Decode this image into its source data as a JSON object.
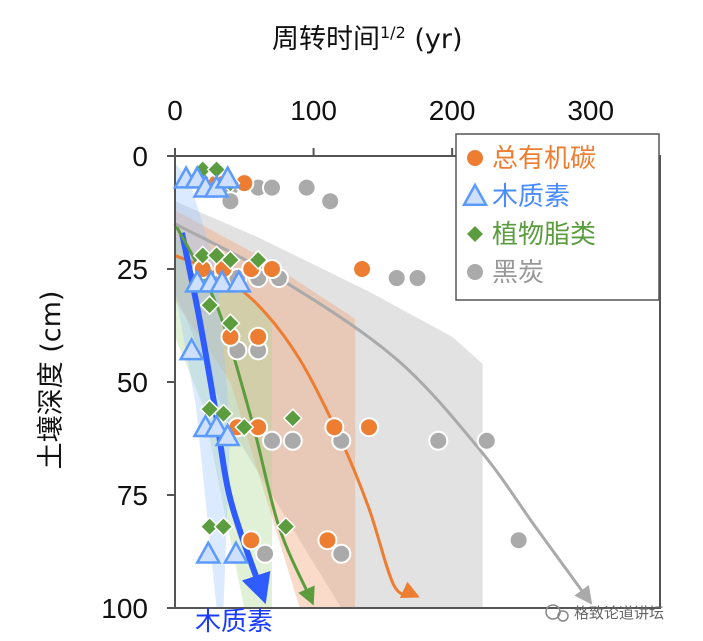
{
  "chart_data": {
    "type": "scatter",
    "title": "周转时间",
    "title_sup": "1/2",
    "title_unit": " (yr)",
    "ylabel": "土壤深度 (cm)",
    "xlim": [
      0,
      350
    ],
    "ylim": [
      100,
      0
    ],
    "xticks": [
      0,
      100,
      200,
      300
    ],
    "yticks": [
      0,
      25,
      50,
      75,
      100
    ],
    "legend_position": "top-right",
    "series": [
      {
        "name": "总有机碳",
        "marker": "circle",
        "color": "#ed7d31",
        "points": [
          [
            20,
            6
          ],
          [
            30,
            6
          ],
          [
            50,
            6
          ],
          [
            20,
            25
          ],
          [
            35,
            25
          ],
          [
            55,
            25
          ],
          [
            70,
            25
          ],
          [
            135,
            25
          ],
          [
            40,
            40
          ],
          [
            60,
            40
          ],
          [
            45,
            60
          ],
          [
            60,
            60
          ],
          [
            115,
            60
          ],
          [
            140,
            60
          ],
          [
            55,
            85
          ],
          [
            110,
            85
          ]
        ],
        "trend": [
          [
            0,
            22
          ],
          [
            30,
            26
          ],
          [
            60,
            33
          ],
          [
            90,
            45
          ],
          [
            120,
            63
          ],
          [
            140,
            78
          ],
          [
            158,
            95
          ]
        ],
        "trend_end": [
          172,
          97
        ]
      },
      {
        "name": "木质素",
        "marker": "triangle",
        "color": "#5b9bff",
        "points": [
          [
            8,
            5
          ],
          [
            16,
            5
          ],
          [
            22,
            7
          ],
          [
            30,
            7
          ],
          [
            38,
            5
          ],
          [
            16,
            28
          ],
          [
            26,
            28
          ],
          [
            34,
            28
          ],
          [
            46,
            28
          ],
          [
            12,
            43
          ],
          [
            22,
            60
          ],
          [
            30,
            60
          ],
          [
            38,
            62
          ],
          [
            24,
            88
          ],
          [
            44,
            88
          ]
        ],
        "trend": [
          [
            5,
            17
          ],
          [
            17,
            35
          ],
          [
            29,
            56
          ],
          [
            40,
            76
          ]
        ],
        "trend_end": [
          62,
          96
        ]
      },
      {
        "name": "植物脂类",
        "marker": "diamond",
        "color": "#5b9c3e",
        "points": [
          [
            20,
            3
          ],
          [
            30,
            3
          ],
          [
            40,
            6
          ],
          [
            20,
            22
          ],
          [
            30,
            22
          ],
          [
            40,
            23
          ],
          [
            60,
            23
          ],
          [
            25,
            33
          ],
          [
            40,
            37
          ],
          [
            25,
            56
          ],
          [
            35,
            57
          ],
          [
            50,
            60
          ],
          [
            85,
            58
          ],
          [
            25,
            82
          ],
          [
            35,
            82
          ],
          [
            80,
            82
          ]
        ],
        "trend": [
          [
            0,
            15
          ],
          [
            30,
            33
          ],
          [
            55,
            58
          ],
          [
            75,
            82
          ]
        ],
        "trend_end": [
          98,
          98
        ]
      },
      {
        "name": "黑炭",
        "marker": "circle",
        "color": "#aaaaaa",
        "points": [
          [
            40,
            7
          ],
          [
            60,
            7
          ],
          [
            70,
            7
          ],
          [
            95,
            7
          ],
          [
            112,
            10
          ],
          [
            40,
            10
          ],
          [
            35,
            27
          ],
          [
            45,
            27
          ],
          [
            60,
            27
          ],
          [
            75,
            27
          ],
          [
            160,
            27
          ],
          [
            175,
            27
          ],
          [
            45,
            43
          ],
          [
            60,
            43
          ],
          [
            70,
            63
          ],
          [
            85,
            63
          ],
          [
            120,
            63
          ],
          [
            190,
            63
          ],
          [
            225,
            63
          ],
          [
            65,
            88
          ],
          [
            120,
            88
          ],
          [
            248,
            85
          ]
        ],
        "trend": [
          [
            0,
            15
          ],
          [
            80,
            28
          ],
          [
            160,
            45
          ],
          [
            220,
            65
          ],
          [
            260,
            82
          ]
        ],
        "trend_end": [
          298,
          98
        ]
      }
    ],
    "annotations": [
      {
        "text": "木质素",
        "color": "#1a3cff"
      }
    ]
  },
  "watermark": "格致论道讲坛"
}
